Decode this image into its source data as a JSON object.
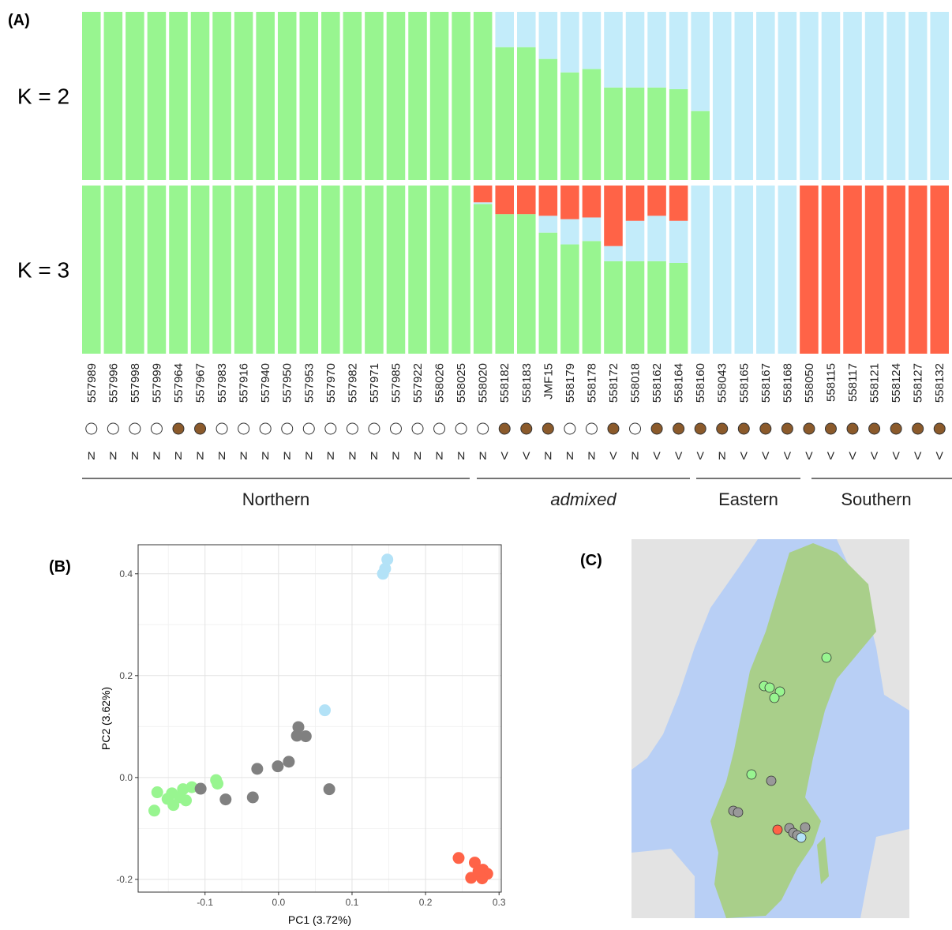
{
  "chart_data": [
    {
      "type": "structure",
      "label": "(A)",
      "categories": [
        "557989",
        "557996",
        "557998",
        "557999",
        "557964",
        "557967",
        "557983",
        "557916",
        "557940",
        "557950",
        "557953",
        "557970",
        "557982",
        "557971",
        "557985",
        "557922",
        "558026",
        "558025",
        "558020",
        "558182",
        "558183",
        "JMF15",
        "558179",
        "558178",
        "558172",
        "558018",
        "558162",
        "558164",
        "558160",
        "558043",
        "558165",
        "558167",
        "558168",
        "558050",
        "558115",
        "558117",
        "558121",
        "558124",
        "558127",
        "558132"
      ],
      "filled": [
        false,
        false,
        false,
        false,
        true,
        true,
        false,
        false,
        false,
        false,
        false,
        false,
        false,
        false,
        false,
        false,
        false,
        false,
        false,
        true,
        true,
        true,
        false,
        false,
        true,
        false,
        true,
        true,
        true,
        true,
        true,
        true,
        true,
        true,
        true,
        true,
        true,
        true,
        true,
        true
      ],
      "codes": [
        "N",
        "N",
        "N",
        "N",
        "N",
        "N",
        "N",
        "N",
        "N",
        "N",
        "N",
        "N",
        "N",
        "N",
        "N",
        "N",
        "N",
        "N",
        "N",
        "V",
        "V",
        "N",
        "N",
        "N",
        "V",
        "N",
        "V",
        "V",
        "V",
        "N",
        "V",
        "V",
        "V",
        "V",
        "V",
        "V",
        "V",
        "V",
        "V",
        "V"
      ],
      "groups": [
        {
          "label": "Northern",
          "italic": false
        },
        {
          "label": "admixed",
          "italic": true
        },
        {
          "label": "Eastern",
          "italic": false
        },
        {
          "label": "Southern",
          "italic": false
        }
      ],
      "ylim": [
        0,
        1
      ],
      "rows": [
        {
          "label": "K = 2",
          "series": [
            {
              "color": "#98f590",
              "values": [
                1,
                1,
                1,
                1,
                1,
                1,
                1,
                1,
                1,
                1,
                1,
                1,
                1,
                1,
                1,
                1,
                1,
                1,
                1,
                0.79,
                0.79,
                0.72,
                0.64,
                0.66,
                0.55,
                0.55,
                0.55,
                0.54,
                0.41,
                0,
                0,
                0,
                0,
                0,
                0,
                0,
                0,
                0,
                0,
                0
              ]
            },
            {
              "color": "#c3ecfa",
              "values": [
                0,
                0,
                0,
                0,
                0,
                0,
                0,
                0,
                0,
                0,
                0,
                0,
                0,
                0,
                0,
                0,
                0,
                0,
                0,
                0.21,
                0.21,
                0.28,
                0.36,
                0.34,
                0.45,
                0.45,
                0.45,
                0.46,
                0.59,
                1,
                1,
                1,
                1,
                1,
                1,
                1,
                1,
                1,
                1,
                1
              ]
            }
          ]
        },
        {
          "label": "K = 3",
          "series": [
            {
              "color": "#98f590",
              "values": [
                1,
                1,
                1,
                1,
                1,
                1,
                1,
                1,
                1,
                1,
                1,
                1,
                1,
                1,
                1,
                1,
                1,
                1,
                0.89,
                0.83,
                0.83,
                0.72,
                0.65,
                0.67,
                0.55,
                0.55,
                0.55,
                0.54,
                0,
                0,
                0,
                0,
                0,
                0,
                0,
                0,
                0,
                0,
                0,
                0
              ]
            },
            {
              "color": "#c3ecfa",
              "values": [
                0,
                0,
                0,
                0,
                0,
                0,
                0,
                0,
                0,
                0,
                0,
                0,
                0,
                0,
                0,
                0,
                0,
                0,
                0.01,
                0,
                0,
                0.1,
                0.15,
                0.14,
                0.09,
                0.24,
                0.27,
                0.25,
                1,
                1,
                1,
                1,
                1,
                0,
                0,
                0,
                0,
                0,
                0,
                0
              ]
            },
            {
              "color": "#ff6347",
              "values": [
                0,
                0,
                0,
                0,
                0,
                0,
                0,
                0,
                0,
                0,
                0,
                0,
                0,
                0,
                0,
                0,
                0,
                0,
                0.1,
                0.17,
                0.17,
                0.18,
                0.2,
                0.19,
                0.36,
                0.21,
                0.18,
                0.21,
                0,
                0,
                0,
                0,
                0,
                1,
                1,
                1,
                1,
                1,
                1,
                1
              ]
            }
          ]
        }
      ]
    },
    {
      "type": "scatter",
      "label": "(B)",
      "x_label": "PC1 (3.72%)",
      "y_label": "PC2 (3.62%)",
      "xlim": [
        -0.191,
        0.303
      ],
      "ylim": [
        -0.225,
        0.457
      ],
      "xticks": [
        -0.1,
        {
          "value": 0,
          "label": "0.0"
        },
        0.1,
        0.2,
        0.3
      ],
      "yticks": [
        -0.2,
        {
          "value": 0,
          "label": "0.0"
        },
        0.2,
        0.4
      ],
      "grid": true,
      "series": [
        {
          "color": "#98f590",
          "x": [
            -0.165,
            -0.169,
            -0.151,
            -0.143,
            -0.134,
            -0.126,
            -0.13,
            -0.118,
            -0.085,
            -0.083,
            -0.145
          ],
          "values": [
            -0.029,
            -0.065,
            -0.042,
            -0.054,
            -0.039,
            -0.045,
            -0.023,
            -0.019,
            -0.005,
            -0.012,
            -0.031
          ]
        },
        {
          "color": "#808080",
          "x": [
            0.027,
            0.025,
            0.037,
            0.014,
            -0.001,
            -0.029,
            0.069,
            -0.035,
            -0.072,
            -0.106
          ],
          "values": [
            0.099,
            0.082,
            0.081,
            0.031,
            0.022,
            0.017,
            -0.023,
            -0.039,
            -0.043,
            -0.022
          ]
        },
        {
          "color": "#b3e2f7",
          "x": [
            0.148,
            0.142,
            0.145,
            0.063
          ],
          "values": [
            0.428,
            0.4,
            0.41,
            0.132
          ]
        },
        {
          "color": "#ff6347",
          "x": [
            0.245,
            0.267,
            0.278,
            0.284,
            0.262,
            0.277,
            0.272
          ],
          "values": [
            -0.158,
            -0.167,
            -0.181,
            -0.189,
            -0.197,
            -0.198,
            -0.184
          ]
        }
      ]
    },
    {
      "type": "map",
      "label": "(C)"
    }
  ]
}
